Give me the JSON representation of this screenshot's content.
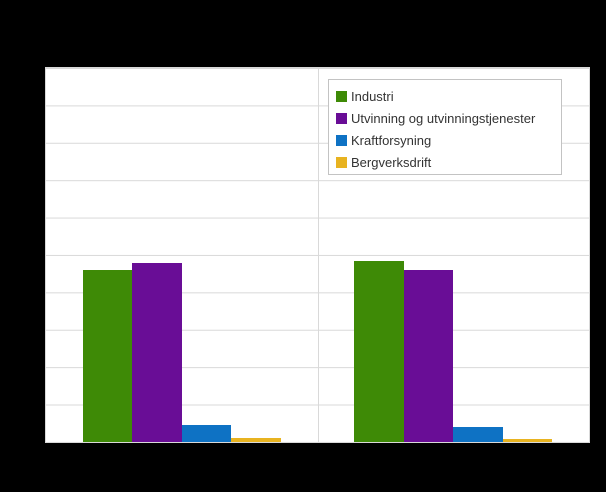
{
  "page": {
    "background_color": "#000000",
    "note": "Chart title, y-axis tick labels and x-axis category labels are not visible (rendered black on black background)"
  },
  "chart_data": {
    "type": "bar",
    "title": "",
    "categories": [
      "",
      ""
    ],
    "series": [
      {
        "name": "Industri",
        "color": "#3e8a06",
        "values": [
          46.1,
          48.5
        ]
      },
      {
        "name": "Utvinning og utvinningstjenester",
        "color": "#690d96",
        "values": [
          47.8,
          45.9
        ]
      },
      {
        "name": "Kraftforsyning",
        "color": "#0e72c4",
        "values": [
          4.5,
          4.0
        ]
      },
      {
        "name": "Bergverksdrift",
        "color": "#e8b320",
        "values": [
          1.1,
          0.8
        ]
      }
    ],
    "xlabel": "",
    "ylabel": "",
    "ylim": [
      0,
      100
    ],
    "y_gridline_divisions": 10,
    "grid": "horizontal gridlines on, one vertical category divider at center",
    "x_tick_labels_visible": false,
    "y_tick_labels_visible": false,
    "legend_position": "top-right inside plot",
    "plot_background": "#ffffff",
    "gridline_color": "#d9d9d9",
    "legend_border_color": "#c3c3c3",
    "legend_text_color": "#333333"
  }
}
